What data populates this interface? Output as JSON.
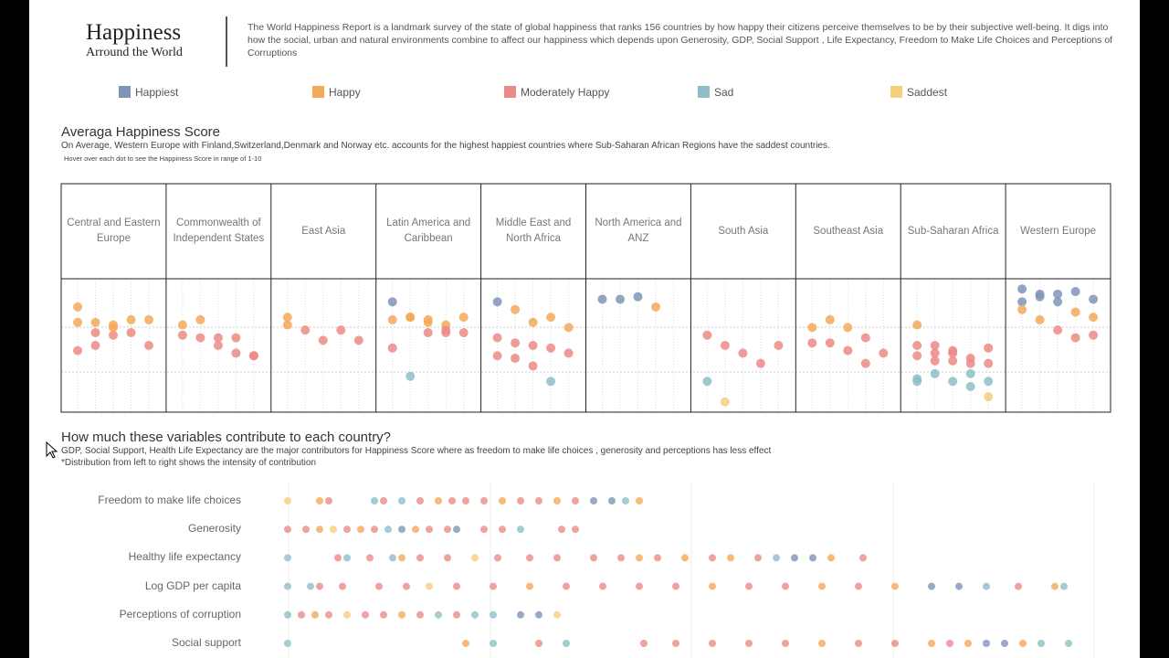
{
  "header": {
    "title": "Happiness",
    "subtitle": "Arround the World",
    "description": "The World Happiness Report is a landmark survey of the state of global happiness that ranks 156 countries by how happy their citizens perceive themselves to be by their subjective well-being. It digs into how the social, urban and natural environments combine to affect our happiness which depends upon Generosity, GDP, Social Support , Life Expectancy, Freedom to Make Life Choices and Perceptions of Corruptions"
  },
  "chart_data": [
    {
      "type": "strip",
      "title": "Averaga Happiness Score",
      "subtitle": "On Average, Western Europe with Finland,Switzerland,Denmark and Norway etc. accounts for the highest happiest countries where Sub-Saharan African Regions have the saddest countries.",
      "note": "Hover over each dot to see the Happiness Score in range of 1-10",
      "legend": [
        {
          "name": "Happiest",
          "color": "#7f95b8"
        },
        {
          "name": "Happy",
          "color": "#f5a95a"
        },
        {
          "name": "Moderately Happy",
          "color": "#ec8b86"
        },
        {
          "name": "Sad",
          "color": "#8ebec9"
        },
        {
          "name": "Saddest",
          "color": "#f5cf7a"
        }
      ],
      "categories": [
        "Central and Eastern Europe",
        "Commonwealth of Independent States",
        "East Asia",
        "Latin America and Caribbean",
        "Middle East and North Africa",
        "North America and ANZ",
        "South Asia",
        "Southeast Asia",
        "Sub-Saharan Africa",
        "Western Europe"
      ],
      "ylim": [
        2.8,
        8.0
      ],
      "values": [
        [
          6.9,
          6.3,
          6.2,
          6.4,
          6.4,
          6.3,
          5.9,
          5.8,
          5.9,
          5.4,
          5.2,
          5.4,
          6.1
        ],
        [
          6.2,
          6.4,
          5.4,
          5.1,
          5.0,
          5.8,
          5.7,
          5.7,
          5.7,
          5.0
        ],
        [
          6.5,
          6.0,
          5.6,
          6.0,
          5.6,
          6.2
        ],
        [
          7.1,
          6.5,
          6.3,
          6.2,
          6.5,
          6.4,
          6.5,
          6.4,
          6.0,
          5.9,
          5.3,
          4.2,
          5.9,
          5.9
        ],
        [
          7.1,
          6.8,
          6.3,
          6.5,
          6.1,
          5.7,
          5.5,
          5.4,
          5.3,
          5.1,
          5.0,
          4.9,
          4.6,
          4.0
        ],
        [
          7.2,
          7.2,
          7.3,
          6.9
        ],
        [
          5.8,
          5.4,
          5.1,
          4.7,
          5.4,
          4.0,
          3.2
        ],
        [
          6.1,
          6.4,
          6.1,
          4.7,
          5.1,
          5.5,
          5.5,
          5.2,
          5.7
        ],
        [
          6.2,
          5.4,
          5.1,
          4.7,
          5.3,
          5.0,
          4.8,
          5.2,
          4.9,
          4.7,
          5.4,
          5.1,
          4.8,
          4.3,
          4.0,
          4.0,
          4.3,
          4.0,
          3.8,
          3.4,
          4.1
        ],
        [
          7.6,
          7.4,
          7.1,
          7.5,
          7.2,
          7.1,
          7.3,
          7.4,
          6.7,
          6.5,
          6.8,
          6.4,
          6.0,
          5.7,
          5.8
        ]
      ],
      "groups": [
        [
          1,
          1,
          1,
          1,
          1,
          1,
          2,
          2,
          2,
          2,
          2,
          2,
          1
        ],
        [
          1,
          1,
          2,
          2,
          2,
          2,
          2,
          2,
          2,
          2
        ],
        [
          1,
          2,
          2,
          2,
          2,
          1
        ],
        [
          0,
          1,
          1,
          1,
          1,
          1,
          1,
          1,
          2,
          2,
          2,
          3,
          2,
          2
        ],
        [
          0,
          1,
          1,
          1,
          1,
          2,
          2,
          2,
          2,
          2,
          2,
          2,
          2,
          3
        ],
        [
          0,
          0,
          0,
          1
        ],
        [
          2,
          2,
          2,
          2,
          2,
          3,
          4
        ],
        [
          1,
          1,
          1,
          2,
          2,
          2,
          2,
          2,
          2
        ],
        [
          1,
          2,
          2,
          2,
          2,
          2,
          2,
          2,
          2,
          2,
          2,
          2,
          2,
          3,
          3,
          3,
          3,
          3,
          3,
          4,
          3
        ],
        [
          0,
          0,
          0,
          0,
          0,
          0,
          0,
          0,
          1,
          1,
          1,
          1,
          2,
          2,
          2
        ]
      ]
    },
    {
      "type": "dot-strip",
      "title": "How much these variables contribute to each country?",
      "subtitle": "GDP, Social Support, Health Life Expectancy are the major contributors for Happiness Score where as freedom to make life choices , generosity and perceptions has less effect",
      "note": "*Distribution from left to right shows the intensity of contribution",
      "categories": [
        "Freedom to make life choices",
        "Generosity",
        "Healthy life expectancy",
        "Log GDP per capita",
        "Perceptions of corruption",
        "Social support"
      ],
      "xlim": [
        0,
        1.72
      ],
      "values": [
        [
          0.0,
          0.07,
          0.09,
          0.19,
          0.21,
          0.25,
          0.29,
          0.33,
          0.36,
          0.39,
          0.43,
          0.47,
          0.51,
          0.55,
          0.59,
          0.63,
          0.67,
          0.71,
          0.74,
          0.77
        ],
        [
          0.0,
          0.04,
          0.07,
          0.1,
          0.13,
          0.16,
          0.19,
          0.22,
          0.25,
          0.28,
          0.31,
          0.35,
          0.37,
          0.43,
          0.47,
          0.51,
          0.6,
          0.63
        ],
        [
          0.0,
          0.11,
          0.13,
          0.18,
          0.23,
          0.25,
          0.29,
          0.35,
          0.41,
          0.46,
          0.53,
          0.59,
          0.67,
          0.73,
          0.77,
          0.81,
          0.87,
          0.93,
          0.97,
          1.03,
          1.07,
          1.11,
          1.15,
          1.19,
          1.26
        ],
        [
          0.0,
          0.05,
          0.07,
          0.12,
          0.2,
          0.26,
          0.31,
          0.37,
          0.45,
          0.53,
          0.61,
          0.69,
          0.77,
          0.85,
          0.93,
          1.01,
          1.09,
          1.17,
          1.25,
          1.33,
          1.41,
          1.47,
          1.53,
          1.6,
          1.68,
          1.7
        ],
        [
          0.0,
          0.03,
          0.06,
          0.09,
          0.13,
          0.17,
          0.21,
          0.25,
          0.29,
          0.33,
          0.37,
          0.41,
          0.45,
          0.51,
          0.55,
          0.59
        ],
        [
          0.0,
          0.39,
          0.45,
          0.55,
          0.61,
          0.78,
          0.85,
          0.93,
          1.01,
          1.09,
          1.17,
          1.25,
          1.33,
          1.41,
          1.45,
          1.49,
          1.53,
          1.57,
          1.61,
          1.65,
          1.71
        ]
      ],
      "groups": [
        [
          4,
          1,
          2,
          3,
          2,
          3,
          2,
          1,
          2,
          2,
          2,
          1,
          2,
          2,
          1,
          2,
          0,
          0,
          3,
          1
        ],
        [
          2,
          2,
          1,
          4,
          2,
          1,
          2,
          3,
          0,
          1,
          2,
          2,
          0,
          2,
          2,
          3,
          2,
          2
        ],
        [
          3,
          2,
          3,
          2,
          3,
          1,
          2,
          2,
          4,
          2,
          2,
          2,
          2,
          2,
          1,
          2,
          1,
          2,
          1,
          2,
          3,
          0,
          0,
          1,
          2
        ],
        [
          3,
          3,
          2,
          2,
          2,
          2,
          4,
          2,
          2,
          1,
          2,
          2,
          2,
          2,
          1,
          2,
          2,
          1,
          2,
          1,
          0,
          0,
          3,
          2,
          1,
          3
        ],
        [
          3,
          2,
          1,
          2,
          4,
          2,
          2,
          1,
          2,
          3,
          2,
          3,
          3,
          0,
          0,
          4
        ],
        [
          3,
          1,
          3,
          2,
          3,
          2,
          2,
          2,
          2,
          2,
          1,
          2,
          2,
          1,
          2,
          1,
          0,
          0,
          1,
          3,
          3
        ]
      ]
    }
  ]
}
